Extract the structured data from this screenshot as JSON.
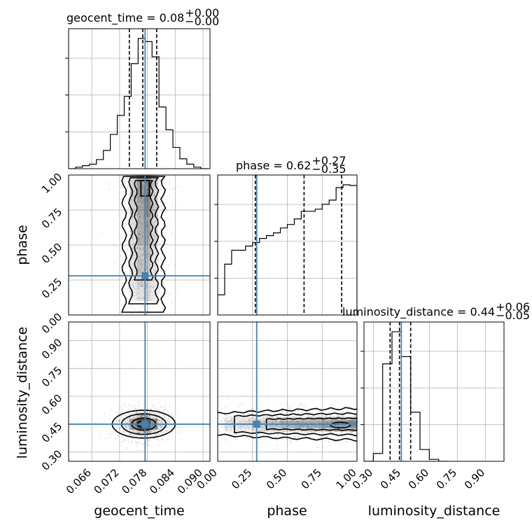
{
  "colors": {
    "truth": "#4682b4",
    "ink": "#000000",
    "grid": "#b0b0b0"
  },
  "chart_data": {
    "type": "corner",
    "parameters": [
      "geocent_time",
      "phase",
      "luminosity_distance"
    ],
    "xlabels": [
      "geocent_time",
      "phase",
      "luminosity_distance"
    ],
    "ylabels": [
      "phase",
      "luminosity_distance"
    ],
    "titles": [
      {
        "param": "geocent_time",
        "prefix": "geocent_time = 0.08",
        "sup": "+0.00",
        "sub": "−0.00"
      },
      {
        "param": "phase",
        "prefix": "phase = 0.62",
        "sup": "+0.27",
        "sub": "−0.35"
      },
      {
        "param": "luminosity_distance",
        "prefix": "luminosity_distance = 0.44",
        "sup": "+0.06",
        "sub": "−0.05"
      }
    ],
    "ranges": {
      "geocent_time": [
        0.061,
        0.0915
      ],
      "phase": [
        0.0,
        1.0
      ],
      "luminosity_distance": [
        0.25,
        1.0
      ]
    },
    "ticks": {
      "geocent_time": [
        "0.066",
        "0.072",
        "0.078",
        "0.084",
        "0.090"
      ],
      "phase": [
        "0.00",
        "0.25",
        "0.50",
        "0.75",
        "1.00"
      ],
      "luminosity_distance": [
        "0.30",
        "0.45",
        "0.60",
        "0.75",
        "0.90"
      ]
    },
    "tick_values": {
      "geocent_time": [
        0.066,
        0.072,
        0.078,
        0.084,
        0.09
      ],
      "phase": [
        0.0,
        0.25,
        0.5,
        0.75,
        1.0
      ],
      "luminosity_distance": [
        0.3,
        0.45,
        0.6,
        0.75,
        0.9
      ]
    },
    "truth": {
      "geocent_time": 0.0775,
      "phase": 0.28,
      "luminosity_distance": 0.45
    },
    "quantiles": {
      "geocent_time": [
        0.0741,
        0.077,
        0.08
      ],
      "phase": [
        0.27,
        0.62,
        0.89
      ],
      "luminosity_distance": [
        0.39,
        0.44,
        0.5
      ]
    },
    "histograms": {
      "geocent_time": {
        "edges": [
          0.061,
          0.0625,
          0.064,
          0.0655,
          0.067,
          0.0685,
          0.07,
          0.0715,
          0.073,
          0.0745,
          0.076,
          0.0775,
          0.079,
          0.0805,
          0.082,
          0.0835,
          0.085,
          0.0865,
          0.088,
          0.0895,
          0.091
        ],
        "counts": [
          0,
          2,
          4,
          6,
          12,
          24,
          45,
          70,
          95,
          138,
          171,
          167,
          147,
          81,
          51,
          28,
          13,
          6,
          2,
          0
        ]
      },
      "phase": {
        "edges": [
          0.0,
          0.05,
          0.1,
          0.15,
          0.2,
          0.25,
          0.3,
          0.35,
          0.4,
          0.45,
          0.5,
          0.55,
          0.6,
          0.65,
          0.7,
          0.75,
          0.8,
          0.85,
          0.9,
          0.95,
          1.0
        ],
        "counts": [
          29,
          73,
          93,
          93,
          99,
          104,
          110,
          114,
          118,
          125,
          130,
          138,
          149,
          149,
          152,
          159,
          165,
          183,
          187,
          186
        ]
      },
      "luminosity_distance": {
        "edges": [
          0.25,
          0.3,
          0.35,
          0.4,
          0.45,
          0.5,
          0.55,
          0.6,
          0.65,
          0.7
        ],
        "counts": [
          0,
          12,
          149,
          198,
          160,
          75,
          18,
          3,
          0
        ]
      }
    }
  }
}
